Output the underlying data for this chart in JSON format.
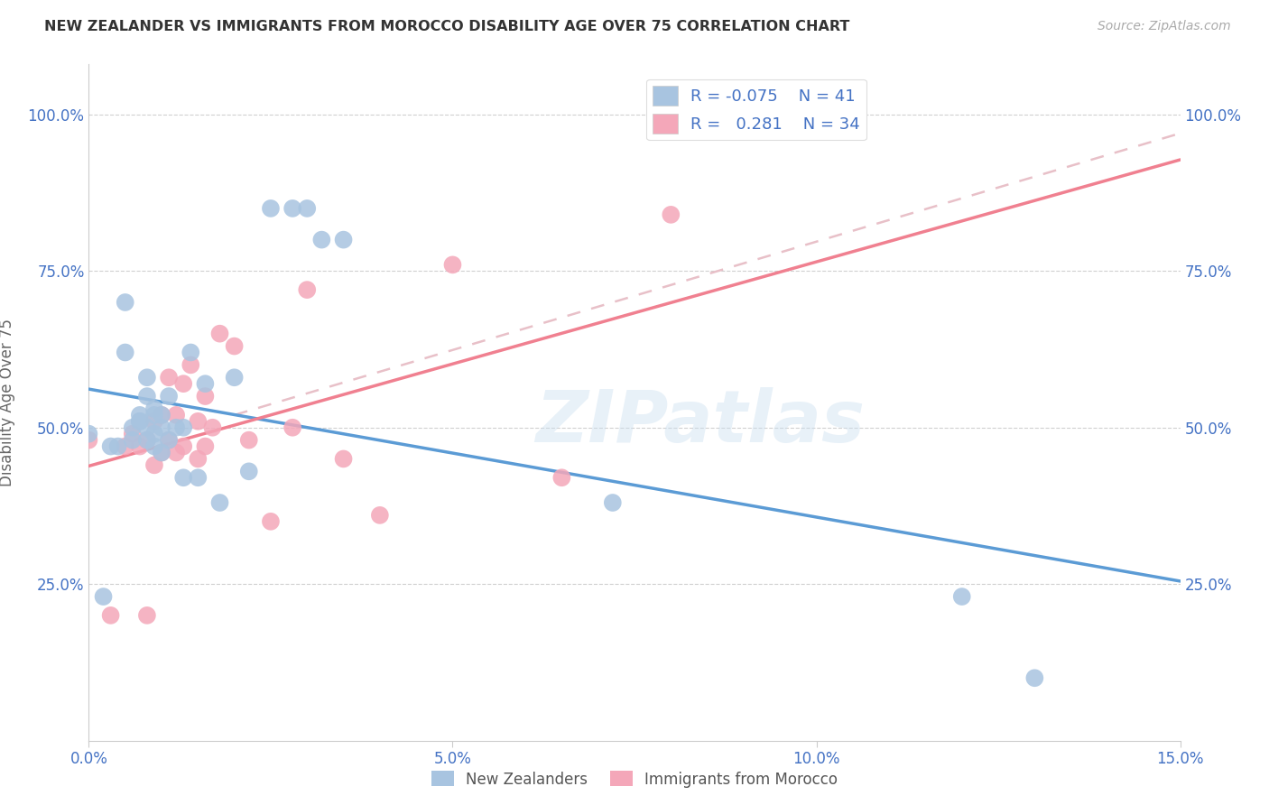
{
  "title": "NEW ZEALANDER VS IMMIGRANTS FROM MOROCCO DISABILITY AGE OVER 75 CORRELATION CHART",
  "source": "Source: ZipAtlas.com",
  "ylabel": "Disability Age Over 75",
  "x_min": 0.0,
  "x_max": 0.15,
  "y_min": 0.0,
  "y_max": 1.08,
  "x_tick_labels": [
    "0.0%",
    "5.0%",
    "10.0%",
    "15.0%"
  ],
  "x_tick_vals": [
    0.0,
    0.05,
    0.1,
    0.15
  ],
  "y_tick_labels": [
    "25.0%",
    "50.0%",
    "75.0%",
    "100.0%"
  ],
  "y_tick_vals": [
    0.25,
    0.5,
    0.75,
    1.0
  ],
  "nz_color": "#a8c4e0",
  "morocco_color": "#f4a7b9",
  "nz_R": -0.075,
  "nz_N": 41,
  "morocco_R": 0.281,
  "morocco_N": 34,
  "legend_text_color": "#4472c4",
  "nz_points_x": [
    0.0,
    0.002,
    0.003,
    0.004,
    0.005,
    0.005,
    0.006,
    0.006,
    0.007,
    0.007,
    0.007,
    0.008,
    0.008,
    0.008,
    0.008,
    0.009,
    0.009,
    0.009,
    0.009,
    0.01,
    0.01,
    0.01,
    0.011,
    0.011,
    0.012,
    0.013,
    0.013,
    0.014,
    0.015,
    0.016,
    0.018,
    0.02,
    0.022,
    0.025,
    0.028,
    0.03,
    0.032,
    0.035,
    0.072,
    0.12,
    0.13
  ],
  "nz_points_y": [
    0.49,
    0.23,
    0.47,
    0.47,
    0.62,
    0.7,
    0.48,
    0.5,
    0.51,
    0.51,
    0.52,
    0.48,
    0.5,
    0.55,
    0.58,
    0.47,
    0.49,
    0.52,
    0.53,
    0.46,
    0.5,
    0.52,
    0.48,
    0.55,
    0.5,
    0.42,
    0.5,
    0.62,
    0.42,
    0.57,
    0.38,
    0.58,
    0.43,
    0.85,
    0.85,
    0.85,
    0.8,
    0.8,
    0.38,
    0.23,
    0.1
  ],
  "morocco_points_x": [
    0.0,
    0.003,
    0.005,
    0.006,
    0.007,
    0.008,
    0.008,
    0.009,
    0.009,
    0.01,
    0.01,
    0.011,
    0.011,
    0.012,
    0.012,
    0.013,
    0.013,
    0.014,
    0.015,
    0.015,
    0.016,
    0.016,
    0.017,
    0.018,
    0.02,
    0.022,
    0.025,
    0.028,
    0.03,
    0.035,
    0.04,
    0.05,
    0.065,
    0.08
  ],
  "morocco_points_y": [
    0.48,
    0.2,
    0.47,
    0.49,
    0.47,
    0.2,
    0.48,
    0.44,
    0.51,
    0.46,
    0.52,
    0.48,
    0.58,
    0.46,
    0.52,
    0.47,
    0.57,
    0.6,
    0.45,
    0.51,
    0.47,
    0.55,
    0.5,
    0.65,
    0.63,
    0.48,
    0.35,
    0.5,
    0.72,
    0.45,
    0.36,
    0.76,
    0.42,
    0.84
  ],
  "watermark": "ZIPatlas",
  "background_color": "#ffffff",
  "grid_color": "#d0d0d0",
  "nz_line_color": "#5b9bd5",
  "morocco_line_color": "#f08090",
  "dashed_line_color": "#e8c0c8"
}
